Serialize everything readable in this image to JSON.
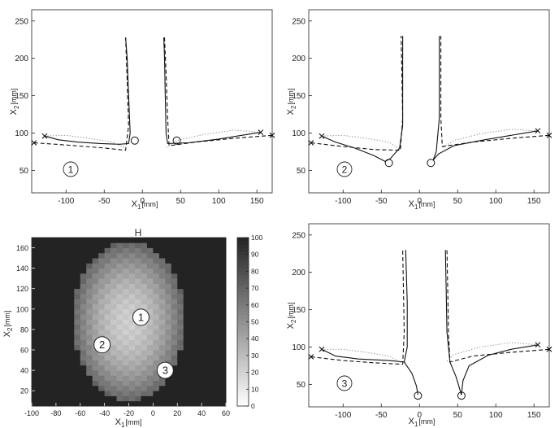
{
  "chart_data": [
    {
      "type": "line",
      "panel_label": "1",
      "xlabel_main": "X",
      "xlabel_sub": "1",
      "xlabel_unit": "[mm]",
      "ylabel_main": "X",
      "ylabel_sub": "2",
      "ylabel_unit": "[mm]",
      "xlim": [
        -145,
        170
      ],
      "ylim": [
        20,
        265
      ],
      "xticks": [
        -100,
        -50,
        0,
        50,
        100,
        150
      ],
      "yticks": [
        50,
        100,
        150,
        200,
        250
      ],
      "targets": [
        [
          -10,
          90
        ],
        [
          45,
          90
        ]
      ],
      "starts": [
        [
          -128,
          96
        ],
        [
          -142,
          87
        ],
        [
          155,
          101
        ],
        [
          170,
          97
        ]
      ],
      "series": [
        {
          "style": "solid",
          "points": [
            [
              -128,
              96
            ],
            [
              -110,
              91
            ],
            [
              -85,
              88
            ],
            [
              -55,
              86
            ],
            [
              -30,
              85
            ],
            [
              -18,
              86
            ],
            [
              -16,
              100
            ],
            [
              -18,
              150
            ],
            [
              -20,
              200
            ],
            [
              -22,
              228
            ]
          ]
        },
        {
          "style": "dashed",
          "points": [
            [
              -142,
              87
            ],
            [
              -100,
              84
            ],
            [
              -50,
              80
            ],
            [
              -22,
              77
            ],
            [
              -18,
              110
            ],
            [
              -20,
              170
            ],
            [
              -22,
              228
            ]
          ]
        },
        {
          "style": "dotted",
          "points": [
            [
              -128,
              96
            ],
            [
              -100,
              97
            ],
            [
              -70,
              93
            ],
            [
              -40,
              88
            ],
            [
              -22,
              80
            ]
          ]
        },
        {
          "style": "solid",
          "points": [
            [
              155,
              101
            ],
            [
              130,
              97
            ],
            [
              100,
              92
            ],
            [
              60,
              87
            ],
            [
              33,
              86
            ],
            [
              31,
              100
            ],
            [
              30,
              150
            ],
            [
              29,
              200
            ],
            [
              28,
              228
            ]
          ]
        },
        {
          "style": "dashed",
          "points": [
            [
              170,
              97
            ],
            [
              120,
              93
            ],
            [
              70,
              88
            ],
            [
              35,
              83
            ],
            [
              33,
              120
            ],
            [
              31,
              180
            ],
            [
              29,
              228
            ]
          ]
        },
        {
          "style": "dotted",
          "points": [
            [
              155,
              101
            ],
            [
              120,
              104
            ],
            [
              80,
              98
            ],
            [
              45,
              90
            ],
            [
              30,
              80
            ]
          ]
        }
      ]
    },
    {
      "type": "line",
      "panel_label": "2",
      "xlabel_main": "X",
      "xlabel_sub": "1",
      "xlabel_unit": "[mm]",
      "ylabel_main": "X",
      "ylabel_sub": "2",
      "ylabel_unit": "[mm]",
      "xlim": [
        -145,
        170
      ],
      "ylim": [
        20,
        265
      ],
      "xticks": [
        -100,
        -50,
        0,
        50,
        100,
        150
      ],
      "yticks": [
        50,
        100,
        150,
        200,
        250
      ],
      "targets": [
        [
          -40,
          60
        ],
        [
          15,
          60
        ]
      ],
      "starts": [
        [
          -128,
          96
        ],
        [
          -142,
          87
        ],
        [
          155,
          103
        ],
        [
          170,
          97
        ]
      ],
      "series": [
        {
          "style": "solid",
          "points": [
            [
              -128,
              96
            ],
            [
              -110,
              88
            ],
            [
              -85,
              80
            ],
            [
              -60,
              70
            ],
            [
              -45,
              62
            ],
            [
              -38,
              66
            ],
            [
              -26,
              80
            ],
            [
              -22,
              110
            ],
            [
              -22,
              160
            ],
            [
              -22,
              230
            ]
          ]
        },
        {
          "style": "dashed",
          "points": [
            [
              -142,
              87
            ],
            [
              -100,
              82
            ],
            [
              -60,
              78
            ],
            [
              -25,
              77
            ],
            [
              -22,
              120
            ],
            [
              -23,
              180
            ],
            [
              -24,
              230
            ]
          ]
        },
        {
          "style": "dotted",
          "points": [
            [
              -128,
              96
            ],
            [
              -100,
              97
            ],
            [
              -70,
              93
            ],
            [
              -40,
              88
            ],
            [
              -26,
              78
            ]
          ]
        },
        {
          "style": "solid",
          "points": [
            [
              155,
              103
            ],
            [
              120,
              97
            ],
            [
              80,
              90
            ],
            [
              45,
              83
            ],
            [
              25,
              72
            ],
            [
              18,
              64
            ],
            [
              22,
              75
            ],
            [
              26,
              120
            ],
            [
              26,
              180
            ],
            [
              26,
              230
            ]
          ]
        },
        {
          "style": "dashed",
          "points": [
            [
              170,
              97
            ],
            [
              120,
              93
            ],
            [
              70,
              88
            ],
            [
              30,
              82
            ],
            [
              28,
              120
            ],
            [
              28,
              180
            ],
            [
              28,
              230
            ]
          ]
        },
        {
          "style": "dotted",
          "points": [
            [
              155,
              103
            ],
            [
              120,
              105
            ],
            [
              80,
              99
            ],
            [
              45,
              90
            ],
            [
              30,
              80
            ]
          ]
        }
      ]
    },
    {
      "type": "heatmap",
      "title": "H",
      "xlabel_main": "X",
      "xlabel_sub": "1",
      "xlabel_unit": "[mm]",
      "ylabel_main": "X",
      "ylabel_sub": "2",
      "ylabel_unit": "[mm]",
      "xlim": [
        -100,
        60
      ],
      "ylim": [
        5,
        170
      ],
      "xticks": [
        -100,
        -80,
        -60,
        -40,
        -20,
        0,
        20,
        40,
        60
      ],
      "yticks": [
        20,
        40,
        60,
        80,
        100,
        120,
        140,
        160
      ],
      "colorbar_range": [
        0,
        100
      ],
      "colorbar_ticks": [
        0,
        10,
        20,
        30,
        40,
        50,
        60,
        70,
        80,
        90,
        100
      ],
      "markers": [
        {
          "label": "1",
          "x": -10,
          "y": 92
        },
        {
          "label": "2",
          "x": -42,
          "y": 65
        },
        {
          "label": "3",
          "x": 10,
          "y": 40
        }
      ]
    },
    {
      "type": "line",
      "panel_label": "3",
      "xlabel_main": "X",
      "xlabel_sub": "1",
      "xlabel_unit": "[mm]",
      "ylabel_main": "X",
      "ylabel_sub": "2",
      "ylabel_unit": "[mm]",
      "xlim": [
        -145,
        170
      ],
      "ylim": [
        20,
        265
      ],
      "xticks": [
        -100,
        -50,
        0,
        50,
        100,
        150
      ],
      "yticks": [
        50,
        100,
        150,
        200,
        250
      ],
      "targets": [
        [
          -2,
          35
        ],
        [
          55,
          35
        ]
      ],
      "starts": [
        [
          -128,
          97
        ],
        [
          -142,
          87
        ],
        [
          155,
          103
        ],
        [
          170,
          97
        ]
      ],
      "series": [
        {
          "style": "solid",
          "points": [
            [
              -128,
              97
            ],
            [
              -110,
              88
            ],
            [
              -80,
              84
            ],
            [
              -40,
              82
            ],
            [
              -20,
              80
            ],
            [
              -16,
              100
            ],
            [
              -16,
              160
            ],
            [
              -18,
              230
            ]
          ]
        },
        {
          "style": "solid",
          "points": [
            [
              -20,
              80
            ],
            [
              -10,
              65
            ],
            [
              -4,
              48
            ],
            [
              -2,
              36
            ]
          ]
        },
        {
          "style": "dashed",
          "points": [
            [
              -142,
              87
            ],
            [
              -100,
              82
            ],
            [
              -60,
              79
            ],
            [
              -22,
              77
            ],
            [
              -20,
              120
            ],
            [
              -21,
              180
            ],
            [
              -22,
              230
            ]
          ]
        },
        {
          "style": "dotted",
          "points": [
            [
              -128,
              97
            ],
            [
              -100,
              97
            ],
            [
              -70,
              93
            ],
            [
              -40,
              88
            ],
            [
              -22,
              78
            ]
          ]
        },
        {
          "style": "solid",
          "points": [
            [
              155,
              103
            ],
            [
              120,
              97
            ],
            [
              90,
              89
            ],
            [
              65,
              75
            ],
            [
              57,
              55
            ],
            [
              55,
              36
            ]
          ]
        },
        {
          "style": "solid",
          "points": [
            [
              55,
              36
            ],
            [
              48,
              60
            ],
            [
              40,
              80
            ],
            [
              36,
              120
            ],
            [
              35,
              180
            ],
            [
              34,
              230
            ]
          ]
        },
        {
          "style": "dashed",
          "points": [
            [
              170,
              97
            ],
            [
              120,
              93
            ],
            [
              70,
              88
            ],
            [
              40,
              80
            ],
            [
              38,
              120
            ],
            [
              37,
              180
            ],
            [
              36,
              230
            ]
          ]
        },
        {
          "style": "dotted",
          "points": [
            [
              155,
              103
            ],
            [
              120,
              106
            ],
            [
              80,
              100
            ],
            [
              45,
              90
            ],
            [
              35,
              80
            ]
          ]
        }
      ]
    }
  ]
}
